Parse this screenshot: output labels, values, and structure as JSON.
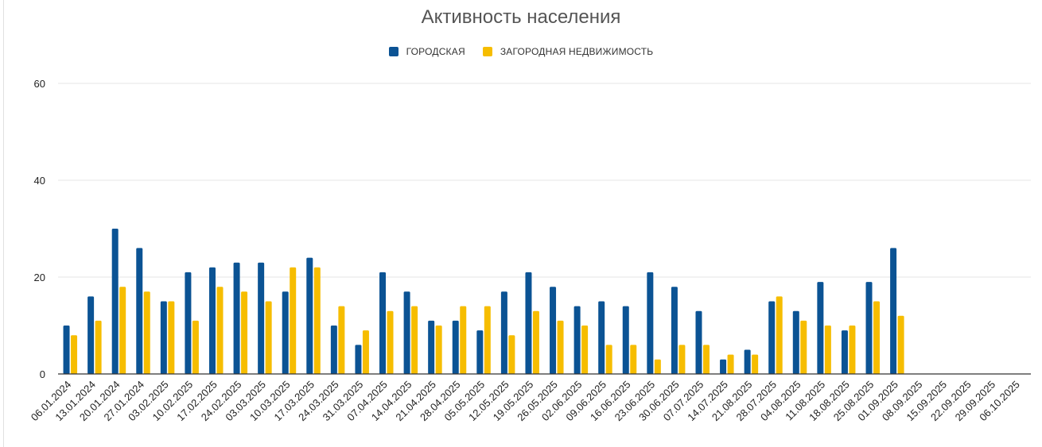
{
  "chart_data": {
    "type": "bar",
    "title": "Активность населения",
    "xlabel": "",
    "ylabel": "",
    "ylim": [
      0,
      60
    ],
    "yticks": [
      0,
      20,
      40,
      60
    ],
    "grid": true,
    "legend_position": "top",
    "categories": [
      "06.01.2024",
      "13.01.2024",
      "20.01.2024",
      "27.01.2024",
      "03.02.2025",
      "10.02.2025",
      "17.02.2025",
      "24.02.2025",
      "03.03.2025",
      "10.03.2025",
      "17.03.2025",
      "24.03.2025",
      "31.03.2025",
      "07.04.2025",
      "14.04.2025",
      "21.04.2025",
      "28.04.2025",
      "05.05.2025",
      "12.05.2025",
      "19.05.2025",
      "26.05.2025",
      "02.06.2025",
      "09.06.2025",
      "16.06.2025",
      "23.06.2025",
      "30.06.2025",
      "07.07.2025",
      "14.07.2025",
      "21.08.2025",
      "28.07.2025",
      "04.08.2025",
      "11.08.2025",
      "18.08.2025",
      "25.08.2025",
      "01.09.2025",
      "08.09.2025",
      "15.09.2025",
      "22.09.2025",
      "29.09.2025",
      "06.10.2025"
    ],
    "series": [
      {
        "name": "ГОРОДСКАЯ",
        "color": "#0b5394",
        "values": [
          10,
          16,
          30,
          26,
          15,
          21,
          22,
          23,
          23,
          17,
          24,
          10,
          6,
          21,
          17,
          11,
          11,
          9,
          17,
          21,
          18,
          14,
          15,
          14,
          21,
          18,
          13,
          3,
          5,
          15,
          13,
          19,
          9,
          19,
          26,
          null,
          null,
          null,
          null,
          null
        ]
      },
      {
        "name": "ЗАГОРОДНАЯ НЕДВИЖИМОСТЬ",
        "color": "#f6bd00",
        "values": [
          8,
          11,
          18,
          17,
          15,
          11,
          18,
          17,
          15,
          22,
          22,
          14,
          9,
          13,
          14,
          10,
          14,
          14,
          8,
          13,
          11,
          10,
          6,
          6,
          3,
          6,
          6,
          4,
          4,
          16,
          11,
          10,
          10,
          15,
          12,
          null,
          null,
          null,
          null,
          null
        ]
      }
    ]
  },
  "colors": {
    "axis": "#333333",
    "grid": "#e6e6e6",
    "title": "#555555"
  }
}
